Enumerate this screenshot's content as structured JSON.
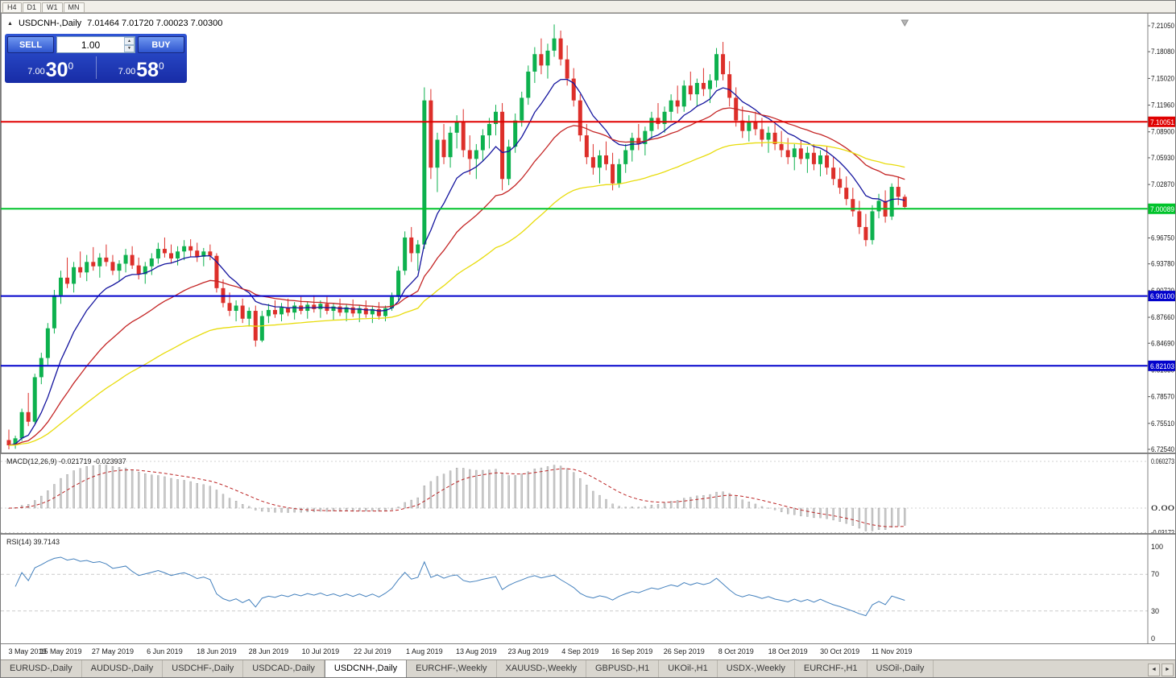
{
  "window": {
    "timeframes": [
      "H4",
      "D1",
      "W1",
      "MN"
    ]
  },
  "chart": {
    "title_symbol": "USDCNH-,Daily",
    "title_ohlc": "7.01464 7.01720 7.00023 7.00300"
  },
  "one_click": {
    "sell_label": "SELL",
    "buy_label": "BUY",
    "volume": "1.00",
    "sell_price_small": "7.00",
    "sell_price_big": "30",
    "sell_price_sup": "0",
    "buy_price_small": "7.00",
    "buy_price_big": "58",
    "buy_price_sup": "0"
  },
  "chart_data": {
    "type": "candlestick",
    "symbol": "USDCNH-",
    "timeframe": "Daily",
    "price_axis": {
      "labels": [
        "7.21050",
        "7.18080",
        "7.15020",
        "7.11960",
        "7.08900",
        "7.05930",
        "7.02870",
        "6.99810",
        "6.96750",
        "6.93780",
        "6.90720",
        "6.87660",
        "6.84690",
        "6.81630",
        "6.78570",
        "6.75510",
        "6.72540"
      ],
      "max": 7.2105,
      "min": 6.7254
    },
    "x_labels": [
      "3 May 2019",
      "15 May 2019",
      "27 May 2019",
      "6 Jun 2019",
      "18 Jun 2019",
      "28 Jun 2019",
      "10 Jul 2019",
      "22 Jul 2019",
      "1 Aug 2019",
      "13 Aug 2019",
      "23 Aug 2019",
      "4 Sep 2019",
      "16 Sep 2019",
      "26 Sep 2019",
      "8 Oct 2019",
      "18 Oct 2019",
      "30 Oct 2019",
      "11 Nov 2019"
    ],
    "x_label_step": 8,
    "up_color": "#0db14e",
    "down_color": "#dd2f2a",
    "levels": [
      {
        "price": 7.10051,
        "label": "7.10051",
        "color": "#e00000",
        "width": 2
      },
      {
        "price": 7.00089,
        "label": "7.00089",
        "color": "#00c32b",
        "width": 2
      },
      {
        "price": 6.901,
        "label": "6.90100",
        "color": "#0202cc",
        "width": 2
      },
      {
        "price": 6.82103,
        "label": "6.82103",
        "color": "#0202cc",
        "width": 2
      }
    ],
    "moving_averages": [
      {
        "period": 10,
        "color": "#14149e"
      },
      {
        "period": 25,
        "color": "#c42525"
      },
      {
        "period": 55,
        "color": "#e8dc0c"
      }
    ],
    "candles": [
      [
        6.736,
        6.748,
        6.7254,
        6.73
      ],
      [
        6.73,
        6.741,
        6.726,
        6.738
      ],
      [
        6.738,
        6.772,
        6.735,
        6.768
      ],
      [
        6.768,
        6.79,
        6.752,
        6.757
      ],
      [
        6.757,
        6.812,
        6.755,
        6.808
      ],
      [
        6.808,
        6.836,
        6.8,
        6.83
      ],
      [
        6.83,
        6.87,
        6.822,
        6.864
      ],
      [
        6.864,
        6.908,
        6.858,
        6.902
      ],
      [
        6.902,
        6.93,
        6.892,
        6.922
      ],
      [
        6.922,
        6.945,
        6.91,
        6.915
      ],
      [
        6.915,
        6.94,
        6.905,
        6.934
      ],
      [
        6.934,
        6.952,
        6.922,
        6.928
      ],
      [
        6.928,
        6.948,
        6.918,
        6.94
      ],
      [
        6.94,
        6.957,
        6.93,
        6.935
      ],
      [
        6.935,
        6.95,
        6.922,
        6.945
      ],
      [
        6.945,
        6.96,
        6.935,
        6.94
      ],
      [
        6.94,
        6.948,
        6.925,
        6.93
      ],
      [
        6.93,
        6.942,
        6.918,
        6.938
      ],
      [
        6.938,
        6.955,
        6.928,
        6.948
      ],
      [
        6.948,
        6.958,
        6.932,
        6.936
      ],
      [
        6.936,
        6.945,
        6.92,
        6.926
      ],
      [
        6.926,
        6.94,
        6.915,
        6.935
      ],
      [
        6.935,
        6.95,
        6.925,
        6.944
      ],
      [
        6.944,
        6.962,
        6.938,
        6.955
      ],
      [
        6.955,
        6.968,
        6.945,
        6.95
      ],
      [
        6.95,
        6.96,
        6.938,
        6.944
      ],
      [
        6.944,
        6.958,
        6.936,
        6.952
      ],
      [
        6.952,
        6.965,
        6.942,
        6.958
      ],
      [
        6.958,
        6.966,
        6.946,
        6.953
      ],
      [
        6.953,
        6.962,
        6.94,
        6.946
      ],
      [
        6.946,
        6.956,
        6.935,
        6.952
      ],
      [
        6.952,
        6.96,
        6.942,
        6.947
      ],
      [
        6.947,
        6.95,
        6.905,
        6.91
      ],
      [
        6.91,
        6.92,
        6.888,
        6.893
      ],
      [
        6.893,
        6.905,
        6.878,
        6.884
      ],
      [
        6.884,
        6.896,
        6.872,
        6.89
      ],
      [
        6.89,
        6.898,
        6.87,
        6.875
      ],
      [
        6.875,
        6.888,
        6.866,
        6.884
      ],
      [
        6.884,
        6.89,
        6.843,
        6.85
      ],
      [
        6.85,
        6.884,
        6.848,
        6.878
      ],
      [
        6.878,
        6.892,
        6.87,
        6.885
      ],
      [
        6.885,
        6.896,
        6.876,
        6.88
      ],
      [
        6.88,
        6.893,
        6.872,
        6.888
      ],
      [
        6.888,
        6.898,
        6.878,
        6.882
      ],
      [
        6.882,
        6.894,
        6.874,
        6.89
      ],
      [
        6.89,
        6.9,
        6.88,
        6.884
      ],
      [
        6.884,
        6.895,
        6.875,
        6.891
      ],
      [
        6.891,
        6.902,
        6.882,
        6.886
      ],
      [
        6.886,
        6.896,
        6.876,
        6.892
      ],
      [
        6.892,
        6.9,
        6.88,
        6.884
      ],
      [
        6.884,
        6.893,
        6.873,
        6.889
      ],
      [
        6.889,
        6.898,
        6.878,
        6.882
      ],
      [
        6.882,
        6.892,
        6.872,
        6.888
      ],
      [
        6.888,
        6.897,
        6.877,
        6.881
      ],
      [
        6.881,
        6.891,
        6.871,
        6.887
      ],
      [
        6.887,
        6.896,
        6.876,
        6.88
      ],
      [
        6.88,
        6.89,
        6.87,
        6.886
      ],
      [
        6.886,
        6.894,
        6.874,
        6.878
      ],
      [
        6.878,
        6.89,
        6.872,
        6.887
      ],
      [
        6.887,
        6.905,
        6.884,
        6.9
      ],
      [
        6.9,
        6.935,
        6.896,
        6.93
      ],
      [
        6.93,
        6.975,
        6.925,
        6.968
      ],
      [
        6.968,
        6.98,
        6.94,
        6.95
      ],
      [
        6.95,
        6.965,
        6.93,
        6.96
      ],
      [
        6.96,
        7.14,
        6.955,
        7.125
      ],
      [
        7.125,
        7.138,
        7.035,
        7.048
      ],
      [
        7.048,
        7.088,
        7.02,
        7.08
      ],
      [
        7.08,
        7.098,
        7.052,
        7.06
      ],
      [
        7.06,
        7.095,
        7.048,
        7.088
      ],
      [
        7.088,
        7.108,
        7.07,
        7.1
      ],
      [
        7.1,
        7.115,
        7.06,
        7.068
      ],
      [
        7.068,
        7.085,
        7.04,
        7.058
      ],
      [
        7.058,
        7.075,
        7.035,
        7.068
      ],
      [
        7.068,
        7.092,
        7.055,
        7.085
      ],
      [
        7.085,
        7.105,
        7.07,
        7.098
      ],
      [
        7.098,
        7.12,
        7.085,
        7.112
      ],
      [
        7.112,
        7.122,
        7.022,
        7.035
      ],
      [
        7.035,
        7.08,
        7.028,
        7.072
      ],
      [
        7.072,
        7.11,
        7.065,
        7.102
      ],
      [
        7.102,
        7.135,
        7.095,
        7.128
      ],
      [
        7.128,
        7.165,
        7.12,
        7.158
      ],
      [
        7.158,
        7.186,
        7.145,
        7.178
      ],
      [
        7.178,
        7.196,
        7.155,
        7.165
      ],
      [
        7.165,
        7.19,
        7.15,
        7.182
      ],
      [
        7.182,
        7.212,
        7.175,
        7.196
      ],
      [
        7.196,
        7.205,
        7.165,
        7.172
      ],
      [
        7.172,
        7.188,
        7.142,
        7.15
      ],
      [
        7.15,
        7.162,
        7.118,
        7.125
      ],
      [
        7.125,
        7.132,
        7.078,
        7.085
      ],
      [
        7.085,
        7.098,
        7.052,
        7.06
      ],
      [
        7.06,
        7.075,
        7.04,
        7.048
      ],
      [
        7.048,
        7.068,
        7.03,
        7.062
      ],
      [
        7.062,
        7.078,
        7.045,
        7.052
      ],
      [
        7.052,
        7.065,
        7.022,
        7.03
      ],
      [
        7.03,
        7.058,
        7.025,
        7.052
      ],
      [
        7.052,
        7.075,
        7.042,
        7.068
      ],
      [
        7.068,
        7.088,
        7.055,
        7.082
      ],
      [
        7.082,
        7.098,
        7.068,
        7.075
      ],
      [
        7.075,
        7.095,
        7.062,
        7.09
      ],
      [
        7.09,
        7.112,
        7.08,
        7.105
      ],
      [
        7.105,
        7.122,
        7.092,
        7.098
      ],
      [
        7.098,
        7.118,
        7.088,
        7.112
      ],
      [
        7.112,
        7.132,
        7.102,
        7.125
      ],
      [
        7.125,
        7.142,
        7.11,
        7.118
      ],
      [
        7.118,
        7.148,
        7.112,
        7.142
      ],
      [
        7.142,
        7.158,
        7.125,
        7.132
      ],
      [
        7.132,
        7.15,
        7.118,
        7.145
      ],
      [
        7.145,
        7.162,
        7.13,
        7.138
      ],
      [
        7.138,
        7.155,
        7.122,
        7.148
      ],
      [
        7.148,
        7.185,
        7.14,
        7.178
      ],
      [
        7.178,
        7.192,
        7.148,
        7.155
      ],
      [
        7.155,
        7.17,
        7.118,
        7.128
      ],
      [
        7.128,
        7.14,
        7.095,
        7.102
      ],
      [
        7.102,
        7.118,
        7.082,
        7.09
      ],
      [
        7.09,
        7.108,
        7.078,
        7.1
      ],
      [
        7.1,
        7.112,
        7.085,
        7.092
      ],
      [
        7.092,
        7.105,
        7.072,
        7.08
      ],
      [
        7.08,
        7.095,
        7.065,
        7.088
      ],
      [
        7.088,
        7.098,
        7.068,
        7.075
      ],
      [
        7.075,
        7.09,
        7.06,
        7.068
      ],
      [
        7.068,
        7.082,
        7.052,
        7.06
      ],
      [
        7.06,
        7.075,
        7.045,
        7.07
      ],
      [
        7.07,
        7.08,
        7.052,
        7.058
      ],
      [
        7.058,
        7.072,
        7.042,
        7.065
      ],
      [
        7.065,
        7.075,
        7.045,
        7.052
      ],
      [
        7.052,
        7.068,
        7.038,
        7.062
      ],
      [
        7.062,
        7.072,
        7.04,
        7.048
      ],
      [
        7.048,
        7.06,
        7.028,
        7.035
      ],
      [
        7.035,
        7.048,
        7.018,
        7.025
      ],
      [
        7.025,
        7.038,
        7.005,
        7.012
      ],
      [
        7.012,
        7.025,
        6.992,
        6.998
      ],
      [
        6.998,
        7.01,
        6.972,
        6.98
      ],
      [
        6.98,
        6.995,
        6.958,
        6.965
      ],
      [
        6.965,
        7.005,
        6.96,
        6.998
      ],
      [
        6.998,
        7.018,
        6.99,
        7.01
      ],
      [
        7.01,
        7.022,
        6.985,
        6.992
      ],
      [
        6.992,
        7.03,
        6.988,
        7.026
      ],
      [
        7.026,
        7.038,
        7.005,
        7.0146
      ],
      [
        7.0146,
        7.0172,
        7.0002,
        7.003
      ]
    ],
    "macd": {
      "display": "MACD(12,26,9) -0.021719 -0.023937",
      "fast": 12,
      "slow": 26,
      "signal_period": 9,
      "axis_labels": [
        "0.060273",
        "0.00",
        "-0.03172"
      ],
      "axis_values": [
        0.060273,
        0,
        -0.03172
      ],
      "histogram_color": "#cccccc",
      "signal_color": "#bb2222"
    },
    "rsi": {
      "display": "RSI(14) 39.7143",
      "period": 14,
      "axis_labels": [
        "100",
        "70",
        "30",
        "0"
      ],
      "guide_levels": [
        70,
        30
      ],
      "color": "#4380bd"
    }
  },
  "tabs": {
    "items": [
      "EURUSD-,Daily",
      "AUDUSD-,Daily",
      "USDCHF-,Daily",
      "USDCAD-,Daily",
      "USDCNH-,Daily",
      "EURCHF-,Weekly",
      "XAUUSD-,Weekly",
      "GBPUSD-,H1",
      "UKOil-,H1",
      "USDX-,Weekly",
      "EURCHF-,H1",
      "USOil-,Daily"
    ],
    "active_index": 4
  }
}
